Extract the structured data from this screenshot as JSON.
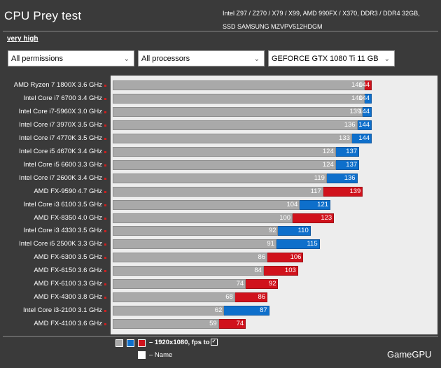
{
  "header": {
    "title": "CPU Prey test",
    "system_line1": "Intel Z97 / Z270 / X79 / X99, AMD 990FX / X370, DDR3 / DDR4 32GB,",
    "system_line2": "SSD SAMSUNG MZVPV512HDGM"
  },
  "preset": "very high",
  "filters": {
    "permissions": "All permissions",
    "processors": "All processors",
    "gpu": "GEFORCE GTX 1080 Ti 11 GB"
  },
  "legend": {
    "series_text": "– 1920x1080, fps to",
    "check_mark": "✓",
    "name_text": "– Name"
  },
  "brand": "GameGPU",
  "colors": {
    "min_bar": "#a9a9a9",
    "intel_avg": "#0e6fcb",
    "amd_avg": "#d0121c",
    "plot_bg": "#ededed",
    "page_bg": "#3a3a3a"
  },
  "chart_data": {
    "type": "bar",
    "orientation": "horizontal",
    "xlim": [
      0,
      170
    ],
    "grid": false,
    "categories": [
      "AMD Ryzen 7 1800X 3.6 GHz",
      "Intel Core i7 6700 3.4 GHz",
      "Intel Core i7-5960X 3.0 GHz",
      "Intel Core i7 3970X 3.5 GHz",
      "Intel Core i7 4770K 3.5 GHz",
      "Intel Core i5 4670K 3.4 GHz",
      "Intel Core i5 6600 3.3 GHz",
      "Intel Core i7 2600K 3.4 GHz",
      "AMD FX-9590 4.7 GHz",
      "Intel Core i3 6100 3.5 GHz",
      "AMD FX-8350 4.0 GHz",
      "Intel Core i3 4330 3.5 GHz",
      "Intel Core i5 2500K 3.3 GHz",
      "AMD FX-6300 3.5 GHz",
      "AMD FX-6150 3.6 GHz",
      "AMD FX-6100 3.3 GHz",
      "AMD FX-4300 3.8 GHz",
      "Intel Core i3-2100 3.1 GHz",
      "AMD FX-4100 3.6 GHz"
    ],
    "vendors": [
      "amd",
      "intel",
      "intel",
      "intel",
      "intel",
      "intel",
      "intel",
      "intel",
      "amd",
      "intel",
      "amd",
      "intel",
      "intel",
      "amd",
      "amd",
      "amd",
      "amd",
      "intel",
      "amd"
    ],
    "series": [
      {
        "values": [
          140,
          140,
          139,
          136,
          133,
          124,
          124,
          119,
          117,
          104,
          100,
          92,
          91,
          86,
          84,
          74,
          68,
          62,
          59
        ]
      },
      {
        "values": [
          144,
          144,
          144,
          144,
          144,
          137,
          137,
          136,
          139,
          121,
          123,
          110,
          115,
          106,
          103,
          92,
          86,
          87,
          74
        ]
      }
    ]
  }
}
